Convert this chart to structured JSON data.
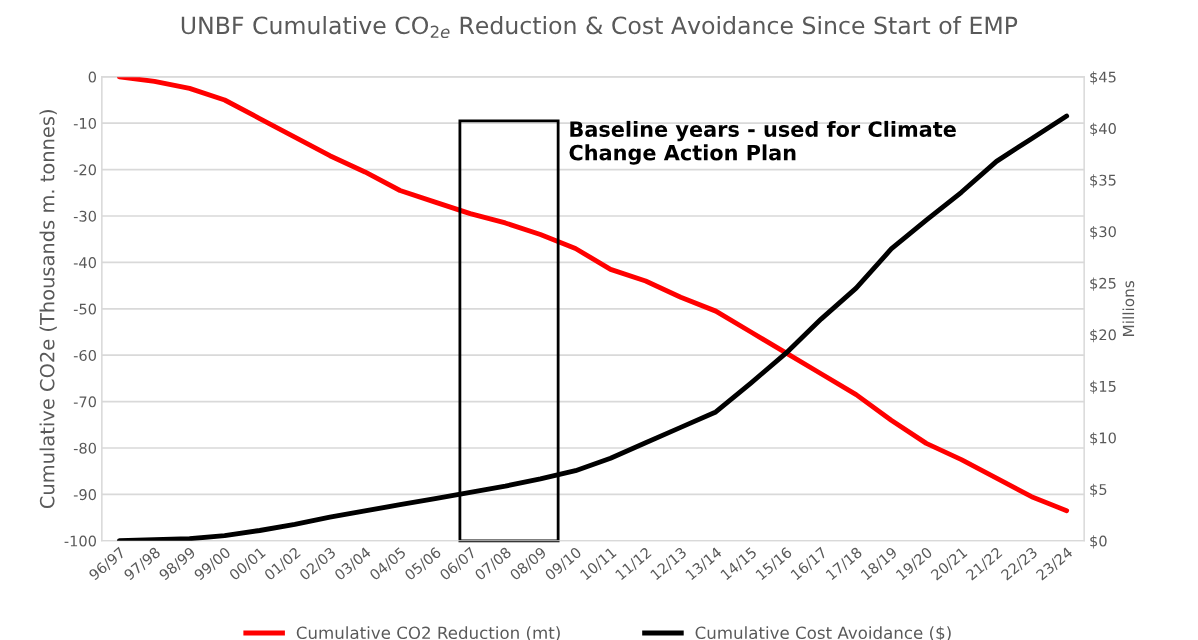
{
  "chart_data": {
    "type": "line",
    "title": "UNBF Cumulative CO$_{2e}$ Reduction & Cost Avoidance Since Start of EMP",
    "ylabel": "Cumulative CO2e (Thousands m. tonnes)",
    "y2label": "Millions",
    "categories": [
      "96/97",
      "97/98",
      "98/99",
      "99/00",
      "00/01",
      "01/02",
      "02/03",
      "03/04",
      "04/05",
      "05/06",
      "06/07",
      "07/08",
      "08/09",
      "09/10",
      "10/11",
      "11/12",
      "12/13",
      "13/14",
      "14/15",
      "15/16",
      "16/17",
      "17/18",
      "18/19",
      "19/20",
      "20/21",
      "21/22",
      "22/23",
      "23/24"
    ],
    "series": [
      {
        "name": "Cumulative CO2 Reduction (mt)",
        "color": "#ff0000",
        "values": [
          0,
          -1,
          -2.5,
          -5,
          -9,
          -13,
          -17,
          -20.5,
          -24.5,
          -27,
          -29.5,
          -31.5,
          -34,
          -37,
          -41.5,
          -44,
          -47.5,
          -50.5,
          -55,
          -59.5,
          -64,
          -68.5,
          -74,
          -79,
          -82.5,
          -86.5,
          -90.5,
          -93.5
        ]
      },
      {
        "name": "Cumulative Cost Avoidance ($)",
        "color": "#000000",
        "axis": "y2",
        "values": [
          0,
          0.1,
          0.2,
          0.5,
          1.0,
          1.6,
          2.3,
          2.9,
          3.5,
          4.1,
          4.7,
          5.3,
          6.0,
          6.8,
          8.0,
          9.5,
          11,
          12.5,
          15.3,
          18.2,
          21.5,
          24.5,
          28.3,
          31.1,
          33.8,
          36.8,
          39,
          41.2
        ]
      }
    ],
    "ylim": [
      -100,
      0
    ],
    "yticks": [
      -100,
      -90,
      -80,
      -70,
      -60,
      -50,
      -40,
      -30,
      -20,
      -10,
      0
    ],
    "y2lim": [
      0,
      45
    ],
    "y2ticks": [
      {
        "value": 0,
        "label": "$0"
      },
      {
        "value": 5,
        "label": "$5"
      },
      {
        "value": 10,
        "label": "$10"
      },
      {
        "value": 15,
        "label": "$15"
      },
      {
        "value": 20,
        "label": "$20"
      },
      {
        "value": 25,
        "label": "$25"
      },
      {
        "value": 30,
        "label": "$30"
      },
      {
        "value": 35,
        "label": "$35"
      },
      {
        "value": 40,
        "label": "$40"
      },
      {
        "value": 45,
        "label": "$45"
      }
    ],
    "annotations": [
      "Baseline years - used for Climate Change Action Plan"
    ],
    "grid": "y",
    "legend": "bottom",
    "marker": "none",
    "line_style": "solid"
  }
}
